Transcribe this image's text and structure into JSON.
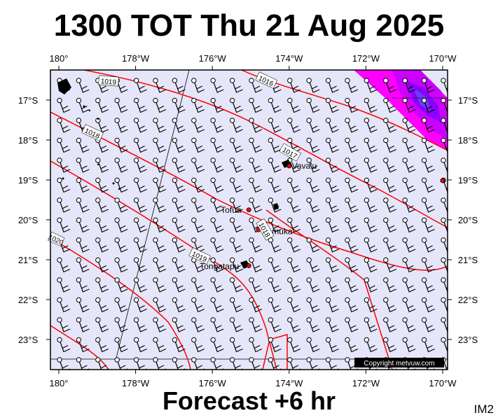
{
  "title": "1300 TOT Thu 21 Aug 2025",
  "footer": "Forecast +6 hr",
  "code": "IM2",
  "copyright": "Copyright metvuw.com",
  "longitude_ticks": [
    "180°",
    "178°W",
    "176°W",
    "174°W",
    "172°W",
    "170°W"
  ],
  "latitude_ticks": [
    "17°S",
    "18°S",
    "19°S",
    "20°S",
    "21°S",
    "22°S",
    "23°S"
  ],
  "places": [
    {
      "name": "Vava'u",
      "lon": -174.0,
      "lat": -18.65
    },
    {
      "name": "Tofua",
      "lon": -175.05,
      "lat": -19.75
    },
    {
      "name": "Namuka",
      "lon": -174.8,
      "lat": -20.25
    },
    {
      "name": "Tongatapu",
      "lon": -175.05,
      "lat": -21.15
    }
  ],
  "isobar_labels": [
    "1016",
    "1017",
    "1018",
    "1019",
    "1019",
    "1020",
    "1018"
  ],
  "colors": {
    "ocean": "#e6e6fa",
    "isobar": "#ff0000",
    "rain_light": "#ff00ff",
    "rain_heavy": "#8a00ff",
    "land": "#000000"
  }
}
